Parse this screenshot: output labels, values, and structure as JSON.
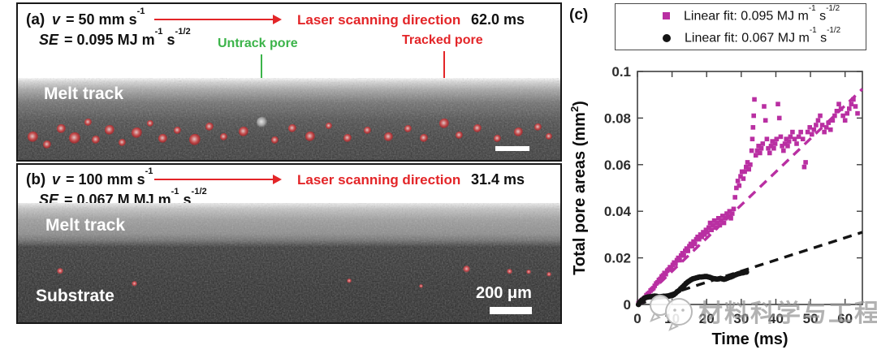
{
  "panel_a": {
    "label": "(a)",
    "v_sym": "v",
    "v_rest": " = 50 mm s^{-1}",
    "se_sym": "SE",
    "se_rest": " = 0.095 MJ m^{-1} s^{-1/2}",
    "scan_label": "Laser scanning direction",
    "time": "62.0 ms",
    "untrack_label": "Untrack pore",
    "tracked_label": "Tracked pore",
    "region_label": "Melt track",
    "pores": [
      [
        18,
        72,
        13
      ],
      [
        36,
        82,
        10
      ],
      [
        53,
        62,
        11
      ],
      [
        70,
        74,
        14
      ],
      [
        86,
        54,
        9
      ],
      [
        96,
        76,
        10
      ],
      [
        113,
        64,
        12
      ],
      [
        128,
        79,
        9
      ],
      [
        146,
        67,
        13
      ],
      [
        163,
        56,
        8
      ],
      [
        178,
        74,
        11
      ],
      [
        196,
        64,
        9
      ],
      [
        218,
        76,
        14
      ],
      [
        236,
        60,
        10
      ],
      [
        253,
        72,
        9
      ],
      [
        278,
        66,
        12
      ],
      [
        316,
        76,
        9
      ],
      [
        338,
        62,
        10
      ],
      [
        360,
        72,
        12
      ],
      [
        383,
        59,
        8
      ],
      [
        406,
        74,
        10
      ],
      [
        430,
        64,
        9
      ],
      [
        456,
        72,
        11
      ],
      [
        480,
        62,
        9
      ],
      [
        500,
        74,
        10
      ],
      [
        525,
        56,
        12
      ],
      [
        543,
        70,
        9
      ],
      [
        566,
        62,
        10
      ],
      [
        590,
        74,
        9
      ],
      [
        616,
        66,
        11
      ],
      [
        640,
        60,
        9
      ],
      [
        654,
        72,
        8
      ]
    ],
    "untracked_pore": [
      300,
      54,
      13
    ]
  },
  "panel_b": {
    "label": "(b)",
    "v_sym": "v",
    "v_rest": " = 100 mm s^{-1}",
    "se_sym": "SE",
    "se_rest": " = 0.067 M MJ m^{-1} s^{-1/2}",
    "scan_label": "Laser scanning direction",
    "time": "31.4 ms",
    "melt_label": "Melt track",
    "substrate_label": "Substrate",
    "scalebar_label": "200 μm",
    "pores": [
      [
        52,
        84,
        8
      ],
      [
        143,
        99,
        7
      ],
      [
        408,
        96,
        6
      ],
      [
        496,
        102,
        5
      ],
      [
        552,
        81,
        9
      ],
      [
        605,
        84,
        7
      ],
      [
        629,
        85,
        6
      ],
      [
        654,
        88,
        6
      ]
    ]
  },
  "panel_c": {
    "label": "(c)"
  },
  "legend": {
    "items": [
      {
        "marker": "square",
        "color": "#b92fa2",
        "label": "Linear fit: 0.095 MJ m^{-1} s^{-1/2}"
      },
      {
        "marker": "circle",
        "color": "#141414",
        "label": "Linear fit: 0.067 MJ m^{-1} s^{-1/2}"
      }
    ]
  },
  "chart_data": {
    "type": "scatter",
    "title": "",
    "xlabel": "Time (ms)",
    "ylabel": "Total pore areas (mm^{2})",
    "xlim": [
      0,
      65
    ],
    "ylim": [
      0,
      0.1
    ],
    "xticks": [
      0,
      10,
      20,
      30,
      40,
      50,
      60
    ],
    "yticks": [
      0,
      0.02,
      0.04,
      0.06,
      0.08,
      0.1
    ],
    "grid": false,
    "legend_position": "top-right-outside",
    "series": [
      {
        "name": "Linear fit: 0.095 MJ m⁻¹ s⁻¹/²",
        "marker": "square",
        "color": "#b92fa2",
        "points": [
          [
            0.3,
            0.0005
          ],
          [
            0.7,
            0.001
          ],
          [
            1,
            0.0015
          ],
          [
            1.4,
            0.002
          ],
          [
            1.8,
            0.0025
          ],
          [
            2.2,
            0.003
          ],
          [
            2.6,
            0.004
          ],
          [
            3,
            0.0045
          ],
          [
            3.4,
            0.005
          ],
          [
            3.8,
            0.006
          ],
          [
            4.2,
            0.0065
          ],
          [
            4.6,
            0.007
          ],
          [
            5,
            0.008
          ],
          [
            5.4,
            0.009
          ],
          [
            5.8,
            0.0095
          ],
          [
            6.2,
            0.0105
          ],
          [
            6.6,
            0.011
          ],
          [
            7,
            0.012
          ],
          [
            7.4,
            0.0125
          ],
          [
            7.8,
            0.0135
          ],
          [
            8.2,
            0.013
          ],
          [
            8.6,
            0.0145
          ],
          [
            9,
            0.015
          ],
          [
            9.4,
            0.016
          ],
          [
            9.8,
            0.0155
          ],
          [
            10.2,
            0.017
          ],
          [
            10.6,
            0.018
          ],
          [
            11,
            0.0175
          ],
          [
            11.4,
            0.019
          ],
          [
            11.8,
            0.02
          ],
          [
            12.2,
            0.019
          ],
          [
            12.6,
            0.021
          ],
          [
            13,
            0.022
          ],
          [
            13.4,
            0.021
          ],
          [
            13.8,
            0.023
          ],
          [
            14.2,
            0.024
          ],
          [
            14.6,
            0.023
          ],
          [
            15,
            0.025
          ],
          [
            15.4,
            0.026
          ],
          [
            15.8,
            0.025
          ],
          [
            16.2,
            0.027
          ],
          [
            16.6,
            0.026
          ],
          [
            17,
            0.028
          ],
          [
            17.4,
            0.029
          ],
          [
            17.8,
            0.028
          ],
          [
            18.2,
            0.03
          ],
          [
            18.6,
            0.029
          ],
          [
            19,
            0.031
          ],
          [
            19.4,
            0.03
          ],
          [
            19.8,
            0.032
          ],
          [
            20.2,
            0.031
          ],
          [
            20.6,
            0.033
          ],
          [
            21,
            0.035
          ],
          [
            21.4,
            0.032
          ],
          [
            21.8,
            0.034
          ],
          [
            22.2,
            0.036
          ],
          [
            22.6,
            0.033
          ],
          [
            23,
            0.035
          ],
          [
            23.4,
            0.037
          ],
          [
            23.8,
            0.034
          ],
          [
            24.2,
            0.036
          ],
          [
            24.6,
            0.038
          ],
          [
            25,
            0.035
          ],
          [
            25.4,
            0.037
          ],
          [
            25.8,
            0.039
          ],
          [
            26.2,
            0.038
          ],
          [
            26.6,
            0.04
          ],
          [
            27,
            0.037
          ],
          [
            27.4,
            0.039
          ],
          [
            27.8,
            0.041
          ],
          [
            28.2,
            0.046
          ],
          [
            28.6,
            0.05
          ],
          [
            29,
            0.053
          ],
          [
            29.4,
            0.051
          ],
          [
            29.8,
            0.055
          ],
          [
            30.2,
            0.057
          ],
          [
            30.6,
            0.054
          ],
          [
            31,
            0.057
          ],
          [
            31.4,
            0.059
          ],
          [
            31.8,
            0.061
          ],
          [
            32.2,
            0.058
          ],
          [
            32.6,
            0.06
          ],
          [
            33,
            0.066
          ],
          [
            33.2,
            0.071
          ],
          [
            33.4,
            0.076
          ],
          [
            33.6,
            0.081
          ],
          [
            33.8,
            0.088
          ],
          [
            34.2,
            0.064
          ],
          [
            34.6,
            0.066
          ],
          [
            35,
            0.068
          ],
          [
            35.4,
            0.065
          ],
          [
            35.8,
            0.067
          ],
          [
            36.2,
            0.069
          ],
          [
            36.6,
            0.085
          ],
          [
            37,
            0.079
          ],
          [
            37.4,
            0.071
          ],
          [
            37.8,
            0.067
          ],
          [
            38.2,
            0.065
          ],
          [
            38.6,
            0.068
          ],
          [
            39,
            0.07
          ],
          [
            39.4,
            0.067
          ],
          [
            39.8,
            0.069
          ],
          [
            40.2,
            0.071
          ],
          [
            40.6,
            0.086
          ],
          [
            41,
            0.08
          ],
          [
            41.4,
            0.072
          ],
          [
            41.8,
            0.068
          ],
          [
            42.2,
            0.066
          ],
          [
            42.6,
            0.069
          ],
          [
            43,
            0.071
          ],
          [
            43.4,
            0.068
          ],
          [
            43.8,
            0.07
          ],
          [
            44.2,
            0.072
          ],
          [
            44.8,
            0.074
          ],
          [
            45.4,
            0.071
          ],
          [
            46,
            0.069
          ],
          [
            46.6,
            0.072
          ],
          [
            47.2,
            0.074
          ],
          [
            47.8,
            0.071
          ],
          [
            48.2,
            0.059
          ],
          [
            48.6,
            0.061
          ],
          [
            49.2,
            0.074
          ],
          [
            49.8,
            0.076
          ],
          [
            50.4,
            0.073
          ],
          [
            51,
            0.075
          ],
          [
            51.6,
            0.077
          ],
          [
            52.2,
            0.079
          ],
          [
            52.8,
            0.081
          ],
          [
            53.4,
            0.077
          ],
          [
            54,
            0.074
          ],
          [
            54.6,
            0.076
          ],
          [
            55.2,
            0.078
          ],
          [
            55.8,
            0.075
          ],
          [
            56.4,
            0.079
          ],
          [
            57,
            0.081
          ],
          [
            57.6,
            0.083
          ],
          [
            58.2,
            0.086
          ],
          [
            58.8,
            0.084
          ],
          [
            59.4,
            0.081
          ],
          [
            60,
            0.079
          ],
          [
            60.6,
            0.082
          ],
          [
            61.2,
            0.084
          ],
          [
            61.8,
            0.086
          ],
          [
            62.4,
            0.088
          ],
          [
            63,
            0.085
          ],
          [
            63.6,
            0.082
          ]
        ]
      },
      {
        "name": "Linear fit: 0.067 MJ m⁻¹ s⁻¹/²",
        "marker": "circle",
        "color": "#141414",
        "points": [
          [
            0.3,
            0
          ],
          [
            0.6,
            0.0008
          ],
          [
            0.9,
            0.0012
          ],
          [
            1.2,
            0.0018
          ],
          [
            1.5,
            0.002
          ],
          [
            1.8,
            0.0024
          ],
          [
            2.1,
            0.0028
          ],
          [
            2.5,
            0.003
          ],
          [
            3,
            0.0032
          ],
          [
            3.5,
            0.0033
          ],
          [
            4,
            0.0033
          ],
          [
            4.5,
            0.0035
          ],
          [
            5,
            0.0036
          ],
          [
            5.5,
            0.0035
          ],
          [
            6,
            0.0033
          ],
          [
            6.5,
            0.0033
          ],
          [
            7,
            0.0034
          ],
          [
            7.5,
            0.0035
          ],
          [
            8,
            0.0035
          ],
          [
            8.5,
            0.0036
          ],
          [
            9,
            0.0036
          ],
          [
            9.5,
            0.0037
          ],
          [
            10,
            0.0038
          ],
          [
            10.5,
            0.0042
          ],
          [
            11,
            0.0048
          ],
          [
            11.5,
            0.0055
          ],
          [
            12,
            0.006
          ],
          [
            12.5,
            0.0068
          ],
          [
            13,
            0.0075
          ],
          [
            13.5,
            0.0082
          ],
          [
            14,
            0.009
          ],
          [
            14.5,
            0.0096
          ],
          [
            15,
            0.0101
          ],
          [
            15.5,
            0.0106
          ],
          [
            16,
            0.011
          ],
          [
            16.5,
            0.0112
          ],
          [
            17,
            0.0114
          ],
          [
            17.5,
            0.0116
          ],
          [
            18,
            0.0118
          ],
          [
            18.5,
            0.0118
          ],
          [
            19,
            0.0119
          ],
          [
            19.5,
            0.012
          ],
          [
            20,
            0.012
          ],
          [
            20.5,
            0.0118
          ],
          [
            21,
            0.0116
          ],
          [
            21.5,
            0.0113
          ],
          [
            22,
            0.0111
          ],
          [
            22.5,
            0.011
          ],
          [
            23,
            0.0109
          ],
          [
            23.5,
            0.011
          ],
          [
            24,
            0.0112
          ],
          [
            24.5,
            0.011
          ],
          [
            25,
            0.0108
          ],
          [
            25.5,
            0.011
          ],
          [
            26,
            0.0113
          ],
          [
            26.5,
            0.0116
          ],
          [
            27,
            0.0118
          ],
          [
            27.5,
            0.0121
          ],
          [
            28,
            0.0125
          ],
          [
            28.5,
            0.0128
          ],
          [
            29,
            0.0131
          ],
          [
            29.5,
            0.0133
          ],
          [
            30,
            0.0135
          ],
          [
            30.5,
            0.0136
          ],
          [
            31,
            0.0138
          ],
          [
            31.5,
            0.0139
          ]
        ]
      }
    ],
    "fits": [
      {
        "name": "Linear fit: 0.095 MJ m⁻¹ s⁻¹/²",
        "color": "#b92fa2",
        "style": "dashed",
        "x0": 0,
        "y0": 0,
        "x1": 65,
        "y1": 0.0925
      },
      {
        "name": "Linear fit: 0.067 MJ m⁻¹ s⁻¹/²",
        "color": "#141414",
        "style": "dashed",
        "x0": 0,
        "y0": 0,
        "x1": 65,
        "y1": 0.031
      }
    ]
  },
  "watermark": {
    "text": "材料科学与工程"
  }
}
